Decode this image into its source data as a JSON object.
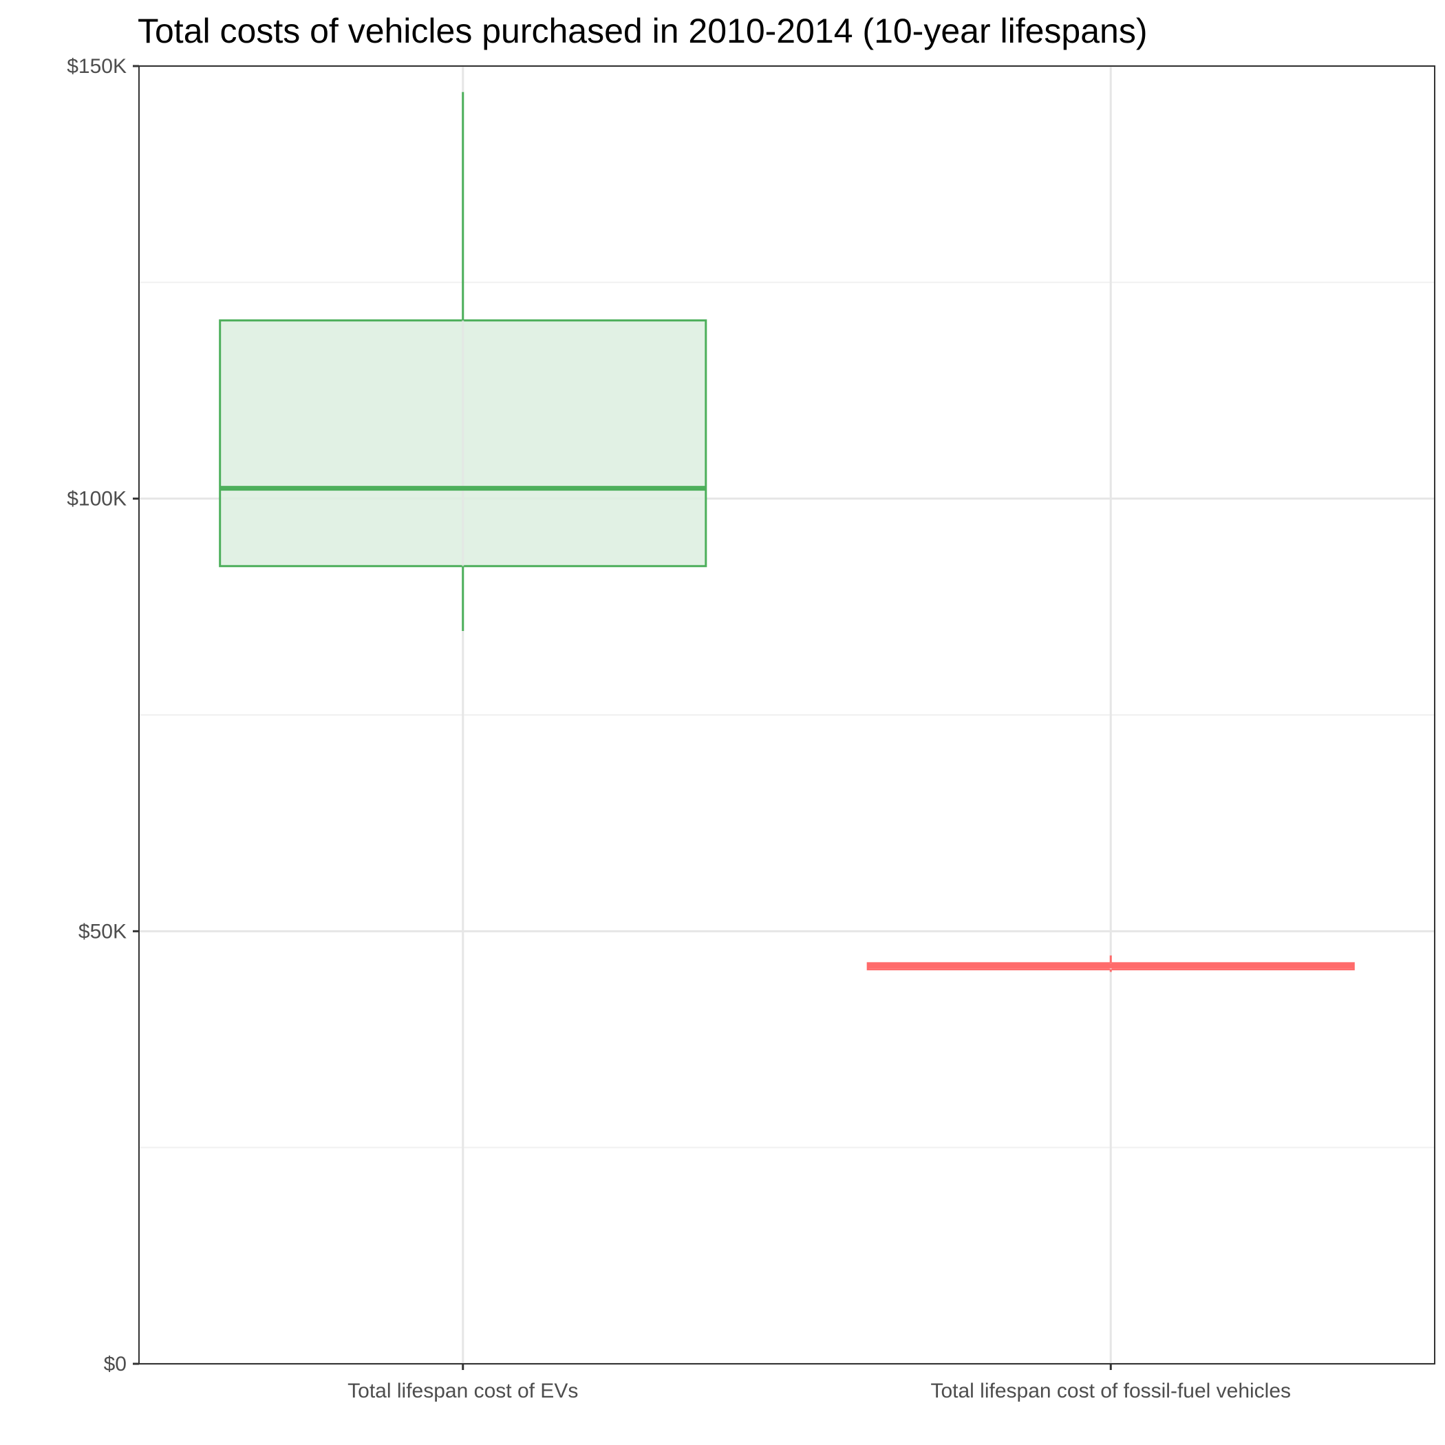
{
  "chart_data": {
    "type": "boxplot",
    "title": "Total costs of vehicles purchased in 2010-2014 (10-year lifespans)",
    "xlabel": "",
    "ylabel": "",
    "categories": [
      "Total lifespan cost of EVs",
      "Total lifespan cost of fossil-fuel vehicles"
    ],
    "ylim": [
      0,
      150000
    ],
    "y_ticks": [
      {
        "value": 0,
        "label": "$0"
      },
      {
        "value": 50000,
        "label": "$50K"
      },
      {
        "value": 100000,
        "label": "$100K"
      },
      {
        "value": 150000,
        "label": "$150K"
      }
    ],
    "y_minor_grid": [
      25000,
      75000,
      125000
    ],
    "grid": true,
    "legend": "none",
    "boxes": [
      {
        "category": "Total lifespan cost of EVs",
        "whisker_low": 84700,
        "q1": 92200,
        "median": 101200,
        "q3": 120600,
        "whisker_high": 147000,
        "color": "#4daf5b",
        "fill": "#dcefdf"
      },
      {
        "category": "Total lifespan cost of fossil-fuel vehicles",
        "whisker_low": 45300,
        "q1": 45600,
        "median": 46000,
        "q3": 46300,
        "whisker_high": 47200,
        "color": "#ff6b6b",
        "fill": "#ffe0e0"
      }
    ]
  }
}
